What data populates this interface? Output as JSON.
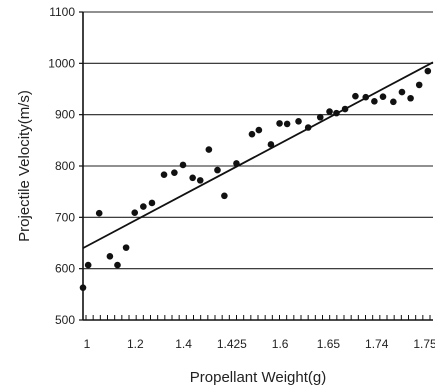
{
  "chart_data": {
    "type": "scatter",
    "title": "",
    "xlabel": "Propellant Weight(g)",
    "ylabel": "Projectile Velocity(m/s)",
    "x_tick_labels": [
      "1",
      "1.2",
      "1.4",
      "1.425",
      "1.6",
      "1.65",
      "1.74",
      "1.75"
    ],
    "y_ticks": [
      500,
      600,
      700,
      800,
      900,
      1000,
      1100
    ],
    "ylim": [
      500,
      1100
    ],
    "grid": "horizontal",
    "legend": "none",
    "points": [
      {
        "x": 1.0,
        "y": 563
      },
      {
        "x": 1.015,
        "y": 607
      },
      {
        "x": 1.047,
        "y": 708
      },
      {
        "x": 1.078,
        "y": 624
      },
      {
        "x": 1.1,
        "y": 607
      },
      {
        "x": 1.125,
        "y": 641
      },
      {
        "x": 1.15,
        "y": 709
      },
      {
        "x": 1.175,
        "y": 721
      },
      {
        "x": 1.2,
        "y": 728
      },
      {
        "x": 1.235,
        "y": 783
      },
      {
        "x": 1.265,
        "y": 787
      },
      {
        "x": 1.29,
        "y": 802
      },
      {
        "x": 1.318,
        "y": 777
      },
      {
        "x": 1.34,
        "y": 772
      },
      {
        "x": 1.365,
        "y": 832
      },
      {
        "x": 1.39,
        "y": 792
      },
      {
        "x": 1.41,
        "y": 742
      },
      {
        "x": 1.445,
        "y": 805
      },
      {
        "x": 1.49,
        "y": 862
      },
      {
        "x": 1.51,
        "y": 870
      },
      {
        "x": 1.545,
        "y": 842
      },
      {
        "x": 1.57,
        "y": 883
      },
      {
        "x": 1.592,
        "y": 882
      },
      {
        "x": 1.625,
        "y": 887
      },
      {
        "x": 1.653,
        "y": 875
      },
      {
        "x": 1.688,
        "y": 895
      },
      {
        "x": 1.715,
        "y": 906
      },
      {
        "x": 1.735,
        "y": 903
      },
      {
        "x": 1.76,
        "y": 911
      },
      {
        "x": 1.79,
        "y": 936
      },
      {
        "x": 1.82,
        "y": 934
      },
      {
        "x": 1.845,
        "y": 926
      },
      {
        "x": 1.87,
        "y": 935
      },
      {
        "x": 1.9,
        "y": 925
      },
      {
        "x": 1.925,
        "y": 944
      },
      {
        "x": 1.95,
        "y": 932
      },
      {
        "x": 1.975,
        "y": 958
      },
      {
        "x": 2.0,
        "y": 985
      }
    ],
    "fit_line": {
      "x": [
        1.0,
        2.015
      ],
      "y": [
        640,
        1002
      ]
    },
    "x_domain": [
      1.0,
      2.015
    ]
  }
}
